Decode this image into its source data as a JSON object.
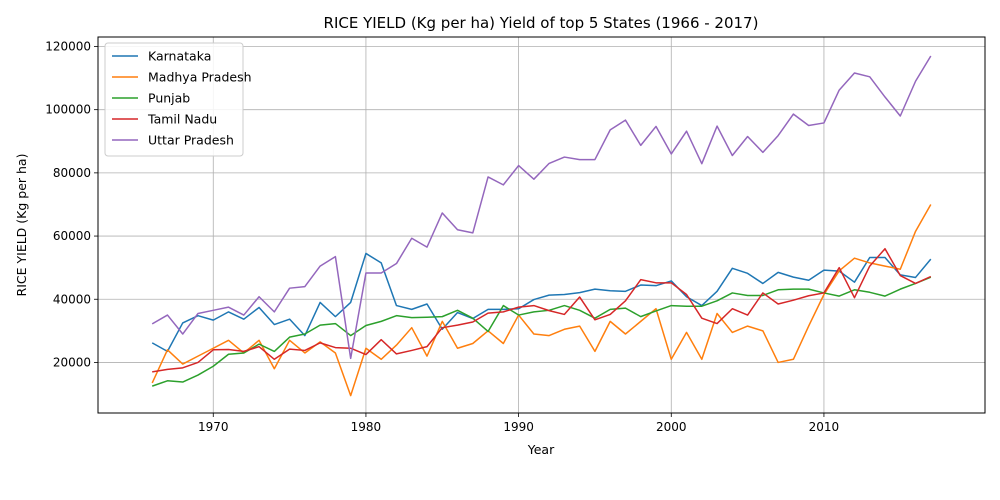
{
  "chart_data": {
    "type": "line",
    "title": "RICE YIELD (Kg per ha) Yield of top 5 States (1966 - 2017)",
    "xlabel": "Year",
    "ylabel": "RICE YIELD (Kg per ha)",
    "xlim": [
      1962.45,
      2020.55
    ],
    "ylim": [
      4000,
      123000
    ],
    "xticks": [
      1970,
      1980,
      1990,
      2000,
      2010
    ],
    "yticks": [
      20000,
      40000,
      60000,
      80000,
      100000,
      120000
    ],
    "grid": true,
    "legend_position": "top-left",
    "x": [
      1966,
      1967,
      1968,
      1969,
      1970,
      1971,
      1972,
      1973,
      1974,
      1975,
      1976,
      1977,
      1978,
      1979,
      1980,
      1981,
      1982,
      1983,
      1984,
      1985,
      1986,
      1987,
      1988,
      1989,
      1990,
      1991,
      1992,
      1993,
      1994,
      1995,
      1996,
      1997,
      1998,
      1999,
      2000,
      2001,
      2002,
      2003,
      2004,
      2005,
      2006,
      2007,
      2008,
      2009,
      2010,
      2011,
      2012,
      2013,
      2014,
      2015,
      2016,
      2017
    ],
    "series": [
      {
        "name": "Karnataka",
        "color": "#1f77b4",
        "values": [
          26200,
          23500,
          32500,
          34800,
          33400,
          36000,
          33700,
          37400,
          32000,
          33700,
          28500,
          39000,
          34500,
          39000,
          54500,
          51500,
          38000,
          36800,
          38500,
          30500,
          35800,
          33900,
          36800,
          36800,
          37000,
          39900,
          41300,
          41500,
          42100,
          43200,
          42700,
          42500,
          44500,
          44300,
          45800,
          40800,
          38000,
          42500,
          49800,
          48200,
          45000,
          48500,
          47000,
          46000,
          49200,
          48900,
          45400,
          53200,
          53200,
          47700,
          46900,
          52700
        ]
      },
      {
        "name": "Madhya Pradesh",
        "color": "#ff7f0e",
        "values": [
          13500,
          24000,
          19500,
          22000,
          24500,
          27000,
          23000,
          27000,
          18000,
          27000,
          23000,
          26500,
          23000,
          9500,
          24500,
          21000,
          25500,
          31000,
          22000,
          33000,
          24500,
          26000,
          30000,
          26000,
          35000,
          29000,
          28500,
          30500,
          31500,
          23500,
          33000,
          29000,
          33000,
          37000,
          21000,
          29500,
          21000,
          35500,
          29500,
          31500,
          30000,
          20000,
          21000,
          31500,
          41500,
          49000,
          53000,
          51500,
          50500,
          49500,
          61500,
          70000
        ]
      },
      {
        "name": "Punjab",
        "color": "#2ca02c",
        "values": [
          12500,
          14200,
          13800,
          16000,
          18800,
          22600,
          23000,
          25800,
          23500,
          28000,
          29000,
          31800,
          32300,
          28500,
          31700,
          33000,
          34800,
          34200,
          34300,
          34500,
          36500,
          34000,
          29800,
          38000,
          35000,
          36000,
          36500,
          38000,
          36500,
          34000,
          36800,
          37200,
          34500,
          36300,
          38000,
          37800,
          37800,
          39500,
          42000,
          41200,
          41200,
          43000,
          43200,
          43200,
          42000,
          41000,
          43000,
          42200,
          41000,
          43200,
          45000,
          47000
        ]
      },
      {
        "name": "Tamil Nadu",
        "color": "#d62728",
        "values": [
          17000,
          17800,
          18300,
          20000,
          24000,
          24100,
          23500,
          25000,
          21000,
          24200,
          23800,
          26200,
          24700,
          24500,
          22500,
          27200,
          22700,
          23800,
          25000,
          31000,
          31800,
          32800,
          35600,
          36000,
          37500,
          38000,
          36400,
          35200,
          40700,
          33500,
          35200,
          39500,
          46200,
          45200,
          45200,
          41500,
          34000,
          32300,
          37000,
          35000,
          42000,
          38500,
          39700,
          41100,
          42000,
          50000,
          40500,
          50500,
          56000,
          47500,
          45000,
          47200
        ]
      },
      {
        "name": "Uttar Pradesh",
        "color": "#9467bd",
        "values": [
          32200,
          35000,
          29000,
          35500,
          36500,
          37500,
          35000,
          40800,
          36000,
          43500,
          44000,
          50500,
          53500,
          21300,
          48300,
          48300,
          51300,
          59300,
          56500,
          67300,
          62000,
          61000,
          78700,
          76200,
          82300,
          78000,
          83000,
          85000,
          84200,
          84200,
          93600,
          96700,
          88700,
          94700,
          86000,
          93200,
          82900,
          94800,
          85500,
          91500,
          86500,
          91800,
          98600,
          95000,
          95800,
          106200,
          111600,
          110400,
          104000,
          98000,
          109000,
          117000
        ]
      }
    ]
  }
}
